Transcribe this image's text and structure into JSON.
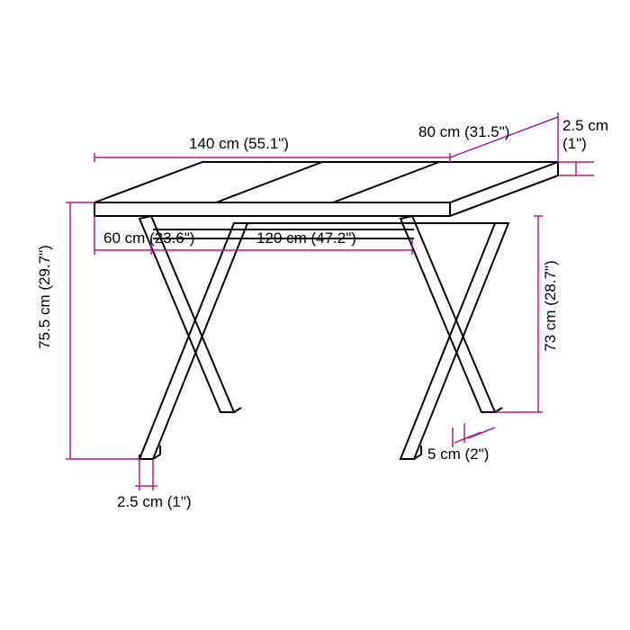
{
  "dimensions": {
    "width_top": "140 cm (55.1\")",
    "depth_top": "80 cm (31.5\")",
    "thickness_top": "2.5 cm (1\")",
    "height_total": "75.5 cm (29.7\")",
    "clearance_height": "73 cm (28.7\")",
    "frame_inset_front": "60 cm (23.6\")",
    "frame_width": "120 cm (47.2\")",
    "leg_depth": "5 cm (2\")",
    "leg_thickness": "2.5 cm (1\")"
  },
  "colors": {
    "table_stroke": "#000000",
    "dimension_stroke": "#b3188e",
    "background": "#ffffff",
    "text": "#000000"
  },
  "stroke_widths": {
    "table": 2,
    "dimension": 1.5
  }
}
